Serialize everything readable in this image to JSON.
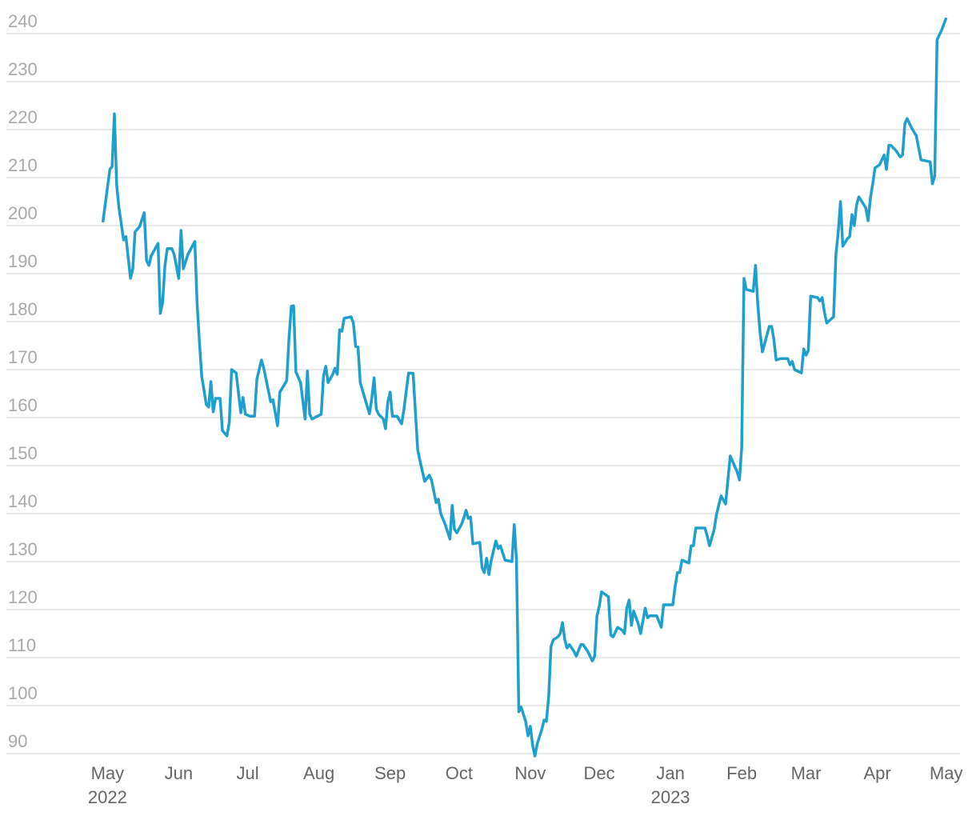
{
  "chart_data": {
    "type": "line",
    "x": [
      -2,
      1,
      2,
      3,
      4,
      5,
      7,
      8,
      10,
      11,
      12,
      14,
      16,
      17,
      18,
      19,
      22,
      23,
      24,
      25,
      26,
      28,
      29,
      31,
      32,
      33,
      35,
      38,
      39,
      40,
      41,
      43,
      44,
      45,
      46,
      47,
      49,
      50,
      52,
      53,
      54,
      56,
      58,
      59,
      60,
      62,
      64,
      65,
      67,
      68,
      71,
      72,
      74,
      75,
      78,
      79,
      80,
      81,
      82,
      84,
      86,
      87,
      88,
      89,
      93,
      94,
      95,
      96,
      98,
      99,
      100,
      101,
      102,
      103,
      106,
      107,
      108,
      109,
      110,
      112,
      114,
      115,
      116,
      117,
      118,
      120,
      121,
      122,
      123,
      124,
      126,
      128,
      129,
      131,
      133,
      135,
      136,
      138,
      140,
      141,
      143,
      144,
      145,
      147,
      149,
      150,
      151,
      152,
      154,
      155,
      156,
      157,
      158,
      159,
      162,
      163,
      164,
      165,
      166,
      167,
      169,
      170,
      171,
      173,
      176,
      177,
      178,
      179,
      180,
      182,
      183,
      184,
      185,
      186,
      187,
      189,
      190,
      191,
      192,
      193,
      194,
      196,
      197,
      198,
      199,
      200,
      201,
      203,
      204,
      206,
      207,
      209,
      211,
      212,
      213,
      214,
      215,
      217,
      218,
      219,
      220,
      222,
      224,
      225,
      226,
      227,
      228,
      229,
      231,
      232,
      234,
      235,
      236,
      239,
      241,
      242,
      245,
      246,
      247,
      248,
      249,
      250,
      253,
      254,
      255,
      256,
      260,
      261,
      262,
      264,
      265,
      267,
      269,
      271,
      274,
      275,
      276,
      277,
      278,
      281,
      282,
      283,
      284,
      285,
      288,
      289,
      290,
      291,
      293,
      296,
      297,
      298,
      299,
      302,
      303,
      304,
      305,
      306,
      309,
      310,
      311,
      312,
      313,
      316,
      317,
      318,
      319,
      320,
      322,
      323,
      324,
      325,
      326,
      327,
      330,
      331,
      332,
      333,
      334,
      336,
      338,
      339,
      340,
      341,
      343,
      345,
      346,
      347,
      348,
      350,
      352,
      354,
      358,
      359,
      360,
      361,
      363,
      365
    ],
    "series": [
      {
        "color": "#1f9fcd",
        "values": [
          200.7,
          211.7,
          212.3,
          223.3,
          208.3,
          203.7,
          197,
          197.7,
          189,
          191,
          198.7,
          199.8,
          202.7,
          192.7,
          191.7,
          193.7,
          196.3,
          181.7,
          184,
          191.7,
          195.2,
          195.2,
          194,
          189,
          199,
          191,
          194,
          196.7,
          183.7,
          175.7,
          168.7,
          162.7,
          162.2,
          167.5,
          161.2,
          164,
          164,
          157.3,
          156.2,
          159,
          170,
          169.3,
          161,
          164.2,
          160.7,
          160.3,
          160.3,
          168,
          172,
          170.3,
          163.3,
          163.7,
          158.3,
          165.3,
          167.7,
          176.7,
          183.2,
          183.3,
          169.5,
          167.3,
          159.7,
          169.7,
          160.7,
          159.7,
          160.7,
          168.7,
          170.7,
          167.3,
          169,
          170.3,
          169,
          178.3,
          178,
          180.7,
          181,
          179.7,
          174.8,
          174.7,
          167.3,
          164,
          160.8,
          164,
          168.3,
          161.7,
          160.7,
          159.7,
          157.7,
          163.3,
          165.3,
          160.3,
          160.3,
          158.7,
          161.7,
          169.3,
          169.2,
          153.3,
          151,
          146.7,
          148,
          147,
          142.3,
          143,
          140,
          137.7,
          134.7,
          141.7,
          136.7,
          136,
          137.7,
          139,
          140.7,
          139,
          139.3,
          133.7,
          134,
          128.7,
          127.7,
          130.7,
          127.3,
          130.3,
          134.3,
          132.7,
          133.3,
          130.3,
          130,
          137.7,
          130.3,
          98.7,
          99.7,
          96.7,
          93.7,
          95.7,
          91.7,
          89.5,
          92,
          95,
          97,
          96.7,
          102,
          112.3,
          113.7,
          114.3,
          115,
          117.3,
          113.7,
          112,
          112.7,
          111.3,
          110.3,
          112.7,
          112.7,
          111.3,
          109.3,
          110.3,
          118.7,
          120.7,
          123.7,
          123,
          122.7,
          114.7,
          114.3,
          116.3,
          115.7,
          115,
          120.3,
          122,
          116.7,
          119.7,
          117,
          115,
          120.3,
          118.3,
          118.7,
          118.7,
          116.3,
          121,
          121,
          121,
          124.7,
          127.7,
          127.7,
          130.3,
          129.7,
          133.3,
          133.3,
          137,
          137,
          135.3,
          133.3,
          136.7,
          139.7,
          143.7,
          142,
          152,
          148.7,
          147,
          153.7,
          189,
          186.7,
          186.3,
          191.7,
          183.7,
          177.7,
          173.7,
          179,
          179,
          176.3,
          172,
          172.3,
          172.3,
          171,
          171.7,
          170,
          169.3,
          174.3,
          173,
          174,
          185.3,
          185,
          184.3,
          185,
          182,
          179.7,
          181,
          194,
          198.7,
          205,
          195.7,
          197.3,
          197.7,
          202.3,
          200,
          204.3,
          206,
          203.7,
          201,
          205.7,
          208.7,
          212,
          212.7,
          214.7,
          211.7,
          216.7,
          216.7,
          215.7,
          214.3,
          214.7,
          221.3,
          222.3,
          220.3,
          218.7,
          213.7,
          213.3,
          208.7,
          210.3,
          238.7,
          240.7,
          243.3
        ]
      }
    ],
    "xlim": [
      -44,
      371
    ],
    "xticks": [
      {
        "value": 0,
        "label": "May\n2022"
      },
      {
        "value": 31,
        "label": "Jun"
      },
      {
        "value": 61,
        "label": "Jul"
      },
      {
        "value": 92,
        "label": "Aug"
      },
      {
        "value": 123,
        "label": "Sep"
      },
      {
        "value": 153,
        "label": "Oct"
      },
      {
        "value": 184,
        "label": "Nov"
      },
      {
        "value": 214,
        "label": "Dec"
      },
      {
        "value": 245,
        "label": "Jan\n2023"
      },
      {
        "value": 276,
        "label": "Feb"
      },
      {
        "value": 304,
        "label": "Mar"
      },
      {
        "value": 335,
        "label": "Apr"
      },
      {
        "value": 365,
        "label": "May"
      }
    ],
    "ylim": [
      88,
      244
    ],
    "yticks": [
      90,
      100,
      110,
      120,
      130,
      140,
      150,
      160,
      170,
      180,
      190,
      200,
      210,
      220,
      230,
      240
    ],
    "grid": true
  }
}
